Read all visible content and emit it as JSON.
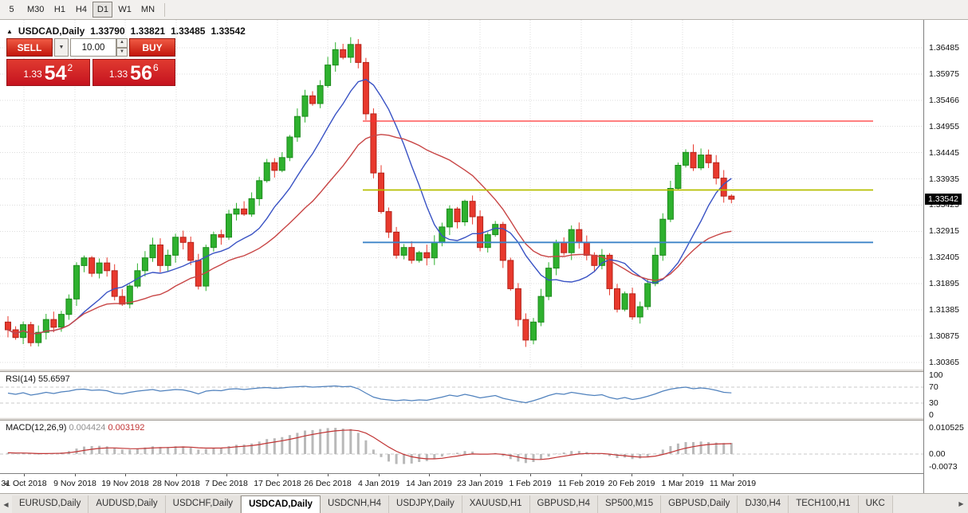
{
  "toolbar": {
    "timeframes": [
      {
        "label": "5",
        "active": false
      },
      {
        "label": "M30",
        "active": false
      },
      {
        "label": "H1",
        "active": false
      },
      {
        "label": "H4",
        "active": false
      },
      {
        "label": "D1",
        "active": true
      },
      {
        "label": "W1",
        "active": false
      },
      {
        "label": "MN",
        "active": false
      }
    ]
  },
  "chart": {
    "symbol": "USDCAD,Daily",
    "open": "1.33790",
    "high": "1.33821",
    "low": "1.33485",
    "close": "1.33542"
  },
  "trade_panel": {
    "sell_label": "SELL",
    "buy_label": "BUY",
    "volume": "10.00",
    "sell_price_prefix": "1.33",
    "sell_price_pips": "54",
    "sell_price_sup": "2",
    "buy_price_prefix": "1.33",
    "buy_price_pips": "56",
    "buy_price_sup": "6"
  },
  "price_axis": {
    "labels": [
      "1.36485",
      "1.35975",
      "1.35466",
      "1.34955",
      "1.34445",
      "1.33935",
      "1.33425",
      "1.32915",
      "1.32405",
      "1.31895",
      "1.31385",
      "1.30875",
      "1.30365"
    ],
    "current": "1.33542"
  },
  "rsi_pane": {
    "name": "RSI(14)",
    "value": "55.6597",
    "levels": [
      "100",
      "70",
      "30",
      "0"
    ],
    "level_values": [
      100,
      70,
      30,
      0
    ]
  },
  "macd_pane": {
    "name": "MACD(12,26,9)",
    "value1": "0.004424",
    "value2": "0.003192",
    "levels": [
      "0.010525",
      "0.00",
      "-0.0073"
    ],
    "level_values": [
      0.010525,
      0,
      -0.0073
    ]
  },
  "date_axis": {
    "labels": [
      "31 Oct 2018",
      "9 Nov 2018",
      "19 Nov 2018",
      "28 Nov 2018",
      "7 Dec 2018",
      "17 Dec 2018",
      "26 Dec 2018",
      "4 Jan 2019",
      "14 Jan 2019",
      "23 Jan 2019",
      "1 Feb 2019",
      "11 Feb 2019",
      "20 Feb 2019",
      "1 Mar 2019",
      "11 Mar 2019"
    ]
  },
  "tabs": {
    "items": [
      {
        "label": "EURUSD,Daily",
        "active": false
      },
      {
        "label": "AUDUSD,Daily",
        "active": false
      },
      {
        "label": "USDCHF,Daily",
        "active": false
      },
      {
        "label": "USDCAD,Daily",
        "active": true
      },
      {
        "label": "USDCNH,H4",
        "active": false
      },
      {
        "label": "USDJPY,Daily",
        "active": false
      },
      {
        "label": "XAUUSD,H1",
        "active": false
      },
      {
        "label": "GBPUSD,H4",
        "active": false
      },
      {
        "label": "SP500,M15",
        "active": false
      },
      {
        "label": "GBPUSD,Daily",
        "active": false
      },
      {
        "label": "DJ30,H4",
        "active": false
      },
      {
        "label": "TECH100,H1",
        "active": false
      },
      {
        "label": "UKC",
        "active": false
      }
    ]
  },
  "icons": {
    "chart_marker": "▲",
    "chevron_down": "▼",
    "spin_up": "▲",
    "spin_down": "▼",
    "tab_scroll_left": "◀",
    "tab_scroll_right": "▶",
    "axis_scroll_left": "◄"
  },
  "colors": {
    "candle_up": "#2eb12e",
    "candle_up_border": "#1d8a1d",
    "candle_down": "#e8392d",
    "candle_down_border": "#b3251c",
    "ma_fast": "#3952c4",
    "ma_slow": "#c84545",
    "rsi_line": "#4f81bd",
    "macd_hist": "#b9b9b9",
    "macd_signal": "#c03333",
    "badge_bg": "#000000",
    "panel_red": "#d8232a"
  },
  "chart_data": {
    "type": "candlestick",
    "symbol": "USDCAD",
    "timeframe": "Daily",
    "title": "USDCAD,Daily",
    "ylim": [
      1.30365,
      1.36485
    ],
    "x_tick_labels": [
      "31 Oct 2018",
      "9 Nov 2018",
      "19 Nov 2018",
      "28 Nov 2018",
      "7 Dec 2018",
      "17 Dec 2018",
      "26 Dec 2018",
      "4 Jan 2019",
      "14 Jan 2019",
      "23 Jan 2019",
      "1 Feb 2019",
      "11 Feb 2019",
      "20 Feb 2019",
      "1 Mar 2019",
      "11 Mar 2019"
    ],
    "current_bar": {
      "open": 1.3379,
      "high": 1.33821,
      "low": 1.33485,
      "close": 1.33542
    },
    "closes": [
      1.31,
      1.3085,
      1.311,
      1.3075,
      1.3095,
      1.312,
      1.3105,
      1.313,
      1.316,
      1.3225,
      1.324,
      1.321,
      1.323,
      1.3215,
      1.3165,
      1.315,
      1.3185,
      1.3215,
      1.324,
      1.3265,
      1.3225,
      1.3245,
      1.328,
      1.327,
      1.3235,
      1.3185,
      1.326,
      1.3285,
      1.328,
      1.3325,
      1.3335,
      1.3325,
      1.3355,
      1.339,
      1.3425,
      1.341,
      1.3435,
      1.3475,
      1.3515,
      1.3555,
      1.354,
      1.3575,
      1.3615,
      1.3645,
      1.363,
      1.3655,
      1.362,
      1.352,
      1.3405,
      1.333,
      1.329,
      1.3245,
      1.326,
      1.3235,
      1.325,
      1.324,
      1.327,
      1.33,
      1.3335,
      1.331,
      1.335,
      1.332,
      1.326,
      1.3285,
      1.3305,
      1.3235,
      1.318,
      1.312,
      1.308,
      1.3115,
      1.3165,
      1.322,
      1.327,
      1.325,
      1.3295,
      1.327,
      1.3245,
      1.3225,
      1.3245,
      1.318,
      1.314,
      1.317,
      1.3125,
      1.3145,
      1.319,
      1.3245,
      1.3315,
      1.3375,
      1.342,
      1.3445,
      1.3415,
      1.344,
      1.3425,
      1.3395,
      1.336,
      1.3354
    ],
    "rsi": {
      "period": 14,
      "last": 55.6597,
      "values": [
        55,
        52,
        56,
        50,
        53,
        57,
        54,
        58,
        60,
        64,
        65,
        62,
        63,
        61,
        55,
        53,
        57,
        60,
        62,
        64,
        60,
        62,
        64,
        63,
        59,
        53,
        60,
        62,
        61,
        65,
        66,
        64,
        66,
        68,
        69,
        67,
        68,
        70,
        71,
        72,
        70,
        71,
        72,
        73,
        71,
        72,
        66,
        55,
        45,
        40,
        38,
        36,
        38,
        36,
        38,
        37,
        41,
        45,
        50,
        47,
        52,
        48,
        43,
        46,
        49,
        42,
        38,
        34,
        31,
        36,
        42,
        49,
        54,
        52,
        57,
        54,
        51,
        49,
        51,
        44,
        40,
        44,
        39,
        42,
        47,
        53,
        60,
        65,
        68,
        70,
        66,
        68,
        66,
        62,
        57,
        55.66
      ]
    },
    "macd": {
      "params": [
        12,
        26,
        9
      ],
      "last_macd": 0.004424,
      "last_signal": 0.003192,
      "values": [
        0.0005,
        0.0002,
        0.0004,
        0.0,
        -0.0002,
        0.0002,
        0.0004,
        0.0006,
        0.0012,
        0.0022,
        0.003,
        0.0032,
        0.0033,
        0.0031,
        0.0024,
        0.0018,
        0.0018,
        0.0021,
        0.0026,
        0.0031,
        0.0028,
        0.0028,
        0.0031,
        0.0031,
        0.0026,
        0.0018,
        0.002,
        0.0024,
        0.0025,
        0.0032,
        0.0037,
        0.0038,
        0.0042,
        0.005,
        0.006,
        0.0063,
        0.0068,
        0.0076,
        0.0085,
        0.0094,
        0.0096,
        0.01,
        0.0104,
        0.0105,
        0.0102,
        0.01,
        0.0085,
        0.0055,
        0.0018,
        -0.0012,
        -0.003,
        -0.004,
        -0.004,
        -0.0038,
        -0.0032,
        -0.0028,
        -0.002,
        -0.001,
        0.0002,
        0.0005,
        0.0012,
        0.001,
        -0.0002,
        0.0,
        0.0004,
        -0.0008,
        -0.002,
        -0.003,
        -0.0036,
        -0.0032,
        -0.0022,
        -0.001,
        0.0002,
        0.0006,
        0.0012,
        0.0012,
        0.0008,
        0.0002,
        0.0002,
        -0.0008,
        -0.0016,
        -0.0014,
        -0.002,
        -0.0018,
        -0.001,
        0.0002,
        0.0018,
        0.0032,
        0.0042,
        0.0048,
        0.0048,
        0.005,
        0.0048,
        0.0046,
        0.0044,
        0.004424
      ]
    },
    "hlines": [
      {
        "name": "resistance-line",
        "price": 1.3506,
        "color": "#ff3333",
        "width": 1.3
      },
      {
        "name": "pivot-line",
        "price": 1.3372,
        "color": "#b6bf00",
        "width": 1.8
      },
      {
        "name": "support-line",
        "price": 1.327,
        "color": "#3d85c8",
        "width": 1.8
      }
    ]
  }
}
